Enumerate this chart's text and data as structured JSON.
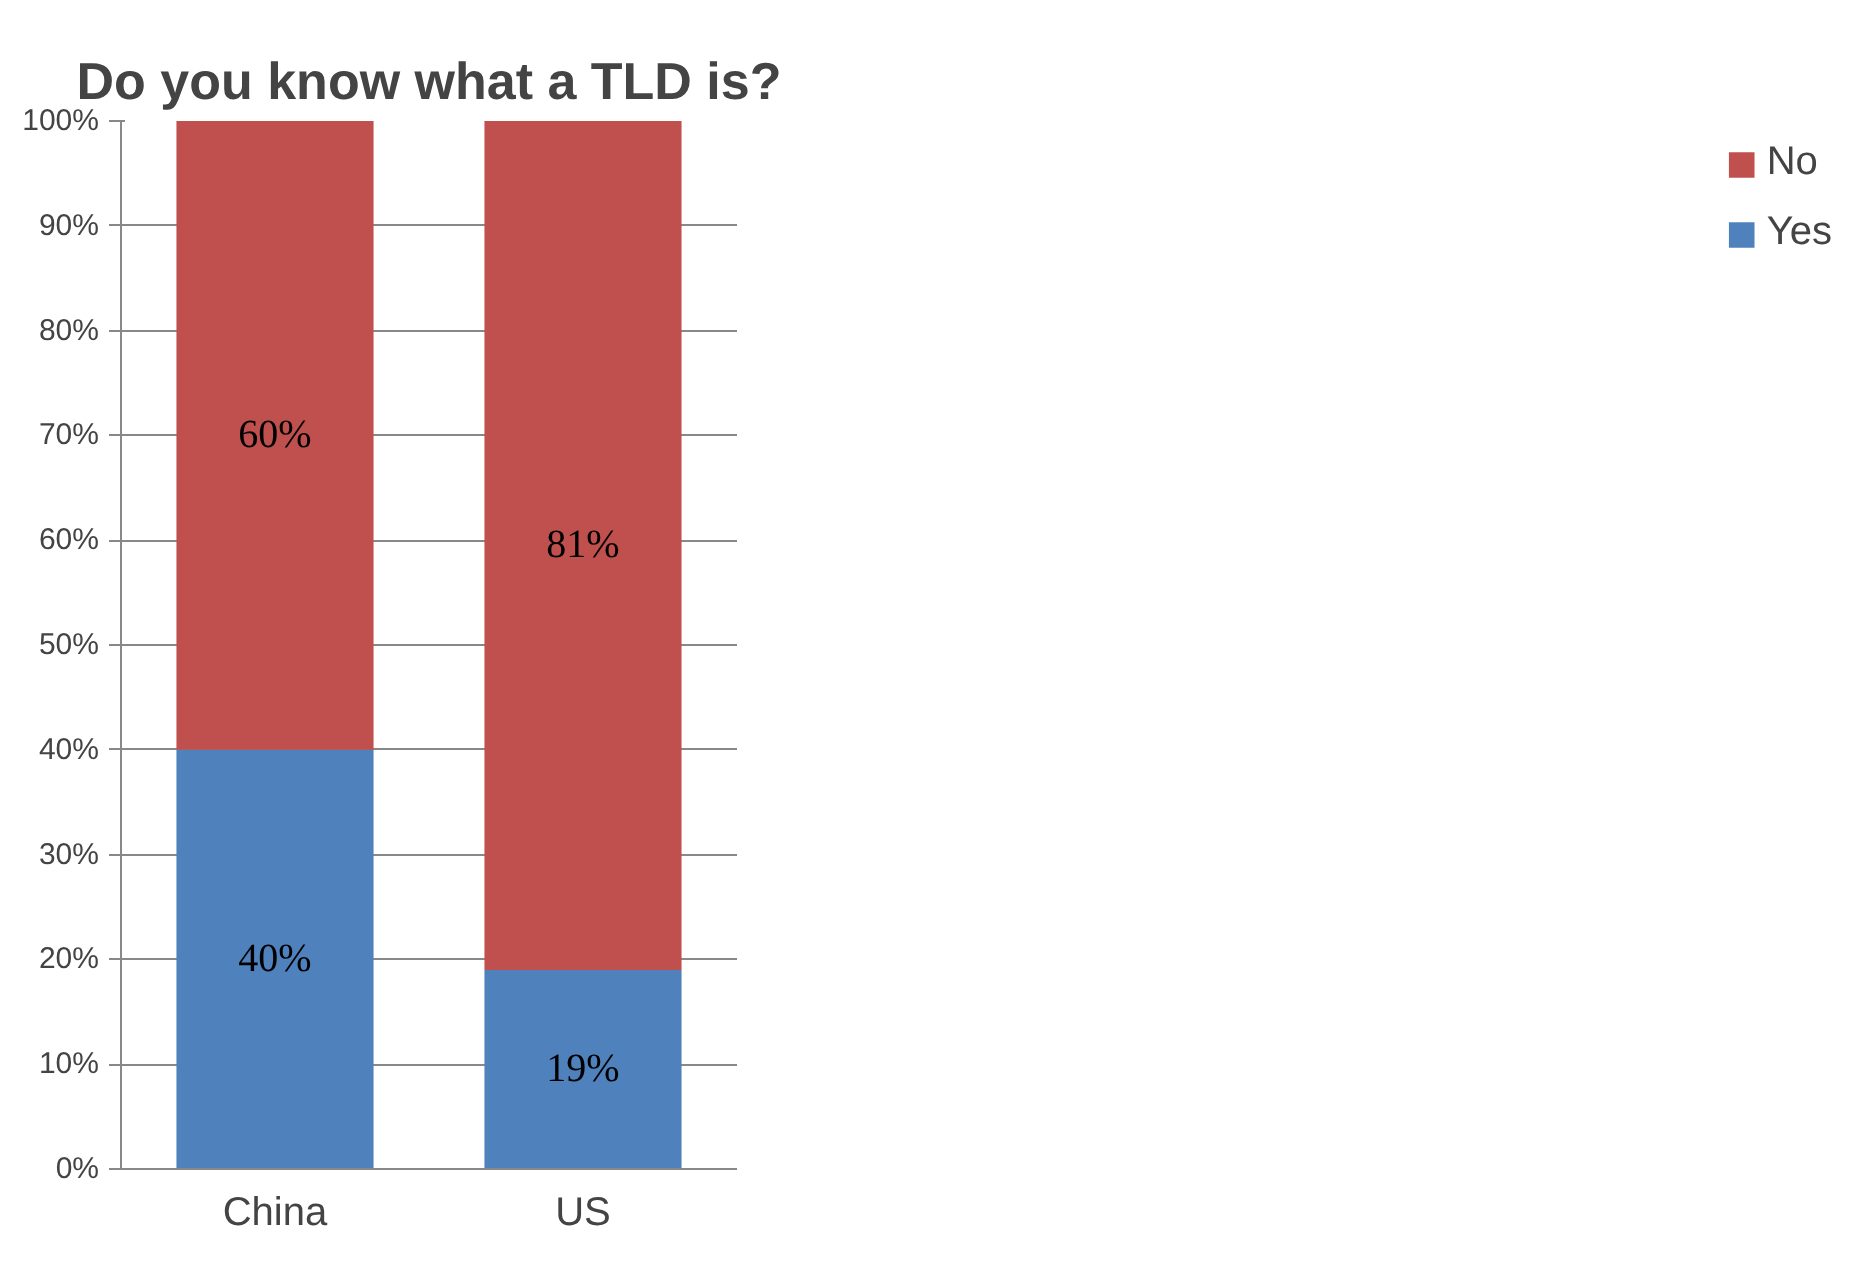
{
  "chart_data": {
    "type": "bar",
    "title": "Do you know what a TLD is?",
    "categories": [
      "China",
      "US"
    ],
    "stacked": true,
    "series": [
      {
        "name": "Yes",
        "color": "#4f81bd",
        "values": [
          40,
          19
        ],
        "value_labels": [
          "40%",
          "19%"
        ]
      },
      {
        "name": "No",
        "color": "#c0504d",
        "values": [
          60,
          81
        ],
        "value_labels": [
          "60%",
          "81%"
        ]
      }
    ],
    "ylim": [
      0,
      100
    ],
    "yticks": [
      {
        "value": 0,
        "label": "0%"
      },
      {
        "value": 10,
        "label": "10%"
      },
      {
        "value": 20,
        "label": "20%"
      },
      {
        "value": 30,
        "label": "30%"
      },
      {
        "value": 40,
        "label": "40%"
      },
      {
        "value": 50,
        "label": "50%"
      },
      {
        "value": 60,
        "label": "60%"
      },
      {
        "value": 70,
        "label": "70%"
      },
      {
        "value": 80,
        "label": "80%"
      },
      {
        "value": 90,
        "label": "90%"
      },
      {
        "value": 100,
        "label": "100%"
      }
    ],
    "grid": "y",
    "legend": "right"
  }
}
